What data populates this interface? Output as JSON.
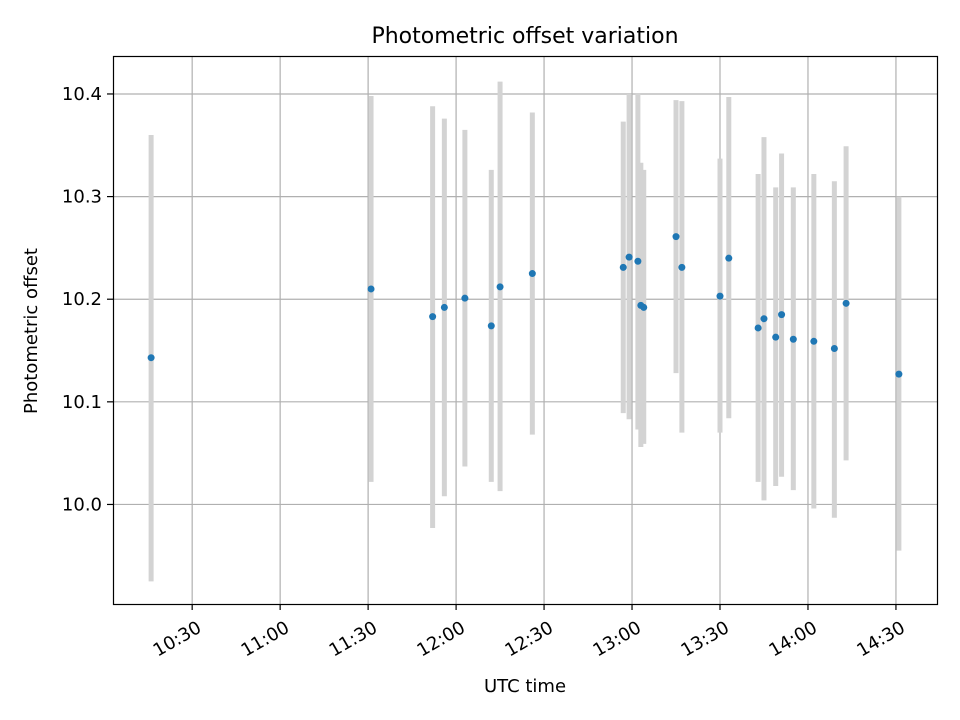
{
  "chart_data": {
    "type": "scatter",
    "title": "Photometric offset variation",
    "xlabel": "UTC time",
    "ylabel": "Photometric offset",
    "x_ticks": [
      "10:30",
      "11:00",
      "11:30",
      "12:00",
      "12:30",
      "13:00",
      "13:30",
      "14:00",
      "14:30"
    ],
    "y_ticks": [
      "10.0",
      "10.1",
      "10.2",
      "10.3",
      "10.4"
    ],
    "xlim": [
      "10:03",
      "14:44"
    ],
    "ylim": [
      9.903,
      10.437
    ],
    "grid": true,
    "colors": {
      "marker": "#1f77b4",
      "errorbar": "#d3d3d3",
      "grid": "#b0b0b0"
    },
    "series": [
      {
        "points": [
          {
            "x": "10:16",
            "y": 10.143,
            "low": 9.925,
            "high": 10.36
          },
          {
            "x": "11:31",
            "y": 10.21,
            "low": 10.022,
            "high": 10.398
          },
          {
            "x": "11:52",
            "y": 10.183,
            "low": 9.977,
            "high": 10.388
          },
          {
            "x": "11:56",
            "y": 10.192,
            "low": 10.008,
            "high": 10.376
          },
          {
            "x": "12:03",
            "y": 10.201,
            "low": 10.037,
            "high": 10.365
          },
          {
            "x": "12:12",
            "y": 10.174,
            "low": 10.022,
            "high": 10.326
          },
          {
            "x": "12:15",
            "y": 10.212,
            "low": 10.013,
            "high": 10.412
          },
          {
            "x": "12:26",
            "y": 10.225,
            "low": 10.068,
            "high": 10.382
          },
          {
            "x": "12:57",
            "y": 10.231,
            "low": 10.089,
            "high": 10.373
          },
          {
            "x": "12:59",
            "y": 10.241,
            "low": 10.083,
            "high": 10.4
          },
          {
            "x": "13:02",
            "y": 10.237,
            "low": 10.073,
            "high": 10.401
          },
          {
            "x": "13:03",
            "y": 10.194,
            "low": 10.056,
            "high": 10.333
          },
          {
            "x": "13:04",
            "y": 10.192,
            "low": 10.059,
            "high": 10.326
          },
          {
            "x": "13:15",
            "y": 10.261,
            "low": 10.128,
            "high": 10.394
          },
          {
            "x": "13:17",
            "y": 10.231,
            "low": 10.07,
            "high": 10.393
          },
          {
            "x": "13:30",
            "y": 10.203,
            "low": 10.07,
            "high": 10.337
          },
          {
            "x": "13:33",
            "y": 10.24,
            "low": 10.084,
            "high": 10.397
          },
          {
            "x": "13:43",
            "y": 10.172,
            "low": 10.022,
            "high": 10.322
          },
          {
            "x": "13:45",
            "y": 10.181,
            "low": 10.004,
            "high": 10.358
          },
          {
            "x": "13:49",
            "y": 10.163,
            "low": 10.018,
            "high": 10.309
          },
          {
            "x": "13:51",
            "y": 10.185,
            "low": 10.027,
            "high": 10.342
          },
          {
            "x": "13:55",
            "y": 10.161,
            "low": 10.014,
            "high": 10.309
          },
          {
            "x": "14:02",
            "y": 10.159,
            "low": 9.996,
            "high": 10.322
          },
          {
            "x": "14:09",
            "y": 10.152,
            "low": 9.987,
            "high": 10.315
          },
          {
            "x": "14:13",
            "y": 10.196,
            "low": 10.043,
            "high": 10.349
          },
          {
            "x": "14:31",
            "y": 10.127,
            "low": 9.955,
            "high": 10.3
          }
        ]
      }
    ]
  }
}
